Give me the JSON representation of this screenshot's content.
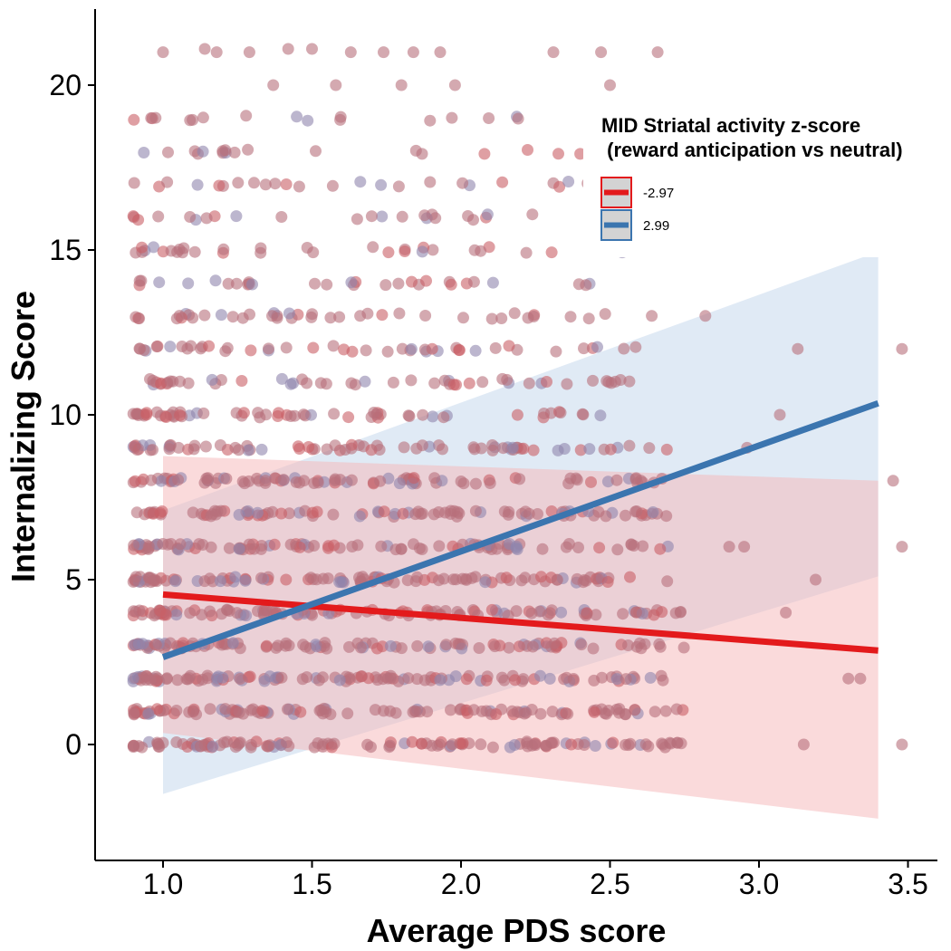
{
  "chart_data": {
    "type": "scatter",
    "xlabel": "Average PDS score",
    "ylabel": "Internalizing Score",
    "xlim": [
      0.78,
      3.58
    ],
    "ylim": [
      -3.4,
      22.3
    ],
    "x_ticks": [
      "1.0",
      "1.5",
      "2.0",
      "2.5",
      "3.0",
      "3.5"
    ],
    "y_ticks": [
      "0",
      "5",
      "10",
      "15",
      "20"
    ],
    "grid": false,
    "legend": {
      "title_line1": "MID Striatal activity z-score",
      "title_line2": " (reward anticipation vs neutral)",
      "placement": "top-right",
      "entries": [
        {
          "label": "-2.97",
          "color": "#e31a1c",
          "fill": "#d3d3d3"
        },
        {
          "label": "2.99",
          "color": "#3b75af",
          "fill": "#d3d3d3"
        }
      ]
    },
    "series": [
      {
        "name": "-2.97",
        "color": "#e31a1c",
        "band_color": "#f5b5b8",
        "fit": {
          "x": [
            1.0,
            3.4
          ],
          "y": [
            4.55,
            2.85
          ]
        },
        "ci_band": {
          "x": [
            1.0,
            3.4
          ],
          "lower": [
            0.35,
            -2.25
          ],
          "upper": [
            8.75,
            8.0
          ]
        }
      },
      {
        "name": "2.99",
        "color": "#3b75af",
        "band_color": "#c6d9ec",
        "fit": {
          "x": [
            1.0,
            3.4
          ],
          "y": [
            2.65,
            10.35
          ]
        },
        "ci_band": {
          "x": [
            1.0,
            3.4
          ],
          "lower": [
            -1.5,
            5.1
          ],
          "upper": [
            7.1,
            14.95
          ]
        }
      }
    ],
    "points": {
      "description_free_color": "#b7707c",
      "outlier_points": [
        {
          "x": 0.96,
          "y": 19.0
        },
        {
          "x": 1.0,
          "y": 21.0
        },
        {
          "x": 1.14,
          "y": 21.1
        },
        {
          "x": 1.18,
          "y": 21.0
        },
        {
          "x": 1.29,
          "y": 21.0
        },
        {
          "x": 1.42,
          "y": 21.1
        },
        {
          "x": 1.5,
          "y": 21.1
        },
        {
          "x": 1.63,
          "y": 21.0
        },
        {
          "x": 1.74,
          "y": 21.0
        },
        {
          "x": 1.84,
          "y": 21.0
        },
        {
          "x": 1.93,
          "y": 21.0
        },
        {
          "x": 2.31,
          "y": 21.0
        },
        {
          "x": 2.47,
          "y": 21.0
        },
        {
          "x": 2.66,
          "y": 21.0
        },
        {
          "x": 1.37,
          "y": 20.0
        },
        {
          "x": 1.58,
          "y": 20.0
        },
        {
          "x": 1.8,
          "y": 20.0
        },
        {
          "x": 1.98,
          "y": 20.0
        },
        {
          "x": 2.5,
          "y": 20.0
        },
        {
          "x": 1.2,
          "y": 18.0
        },
        {
          "x": 3.48,
          "y": 12.0
        },
        {
          "x": 3.48,
          "y": 6.0
        },
        {
          "x": 3.48,
          "y": 0.0
        },
        {
          "x": 3.45,
          "y": 8.0
        },
        {
          "x": 3.13,
          "y": 12.0
        },
        {
          "x": 2.64,
          "y": 13.0
        },
        {
          "x": 2.82,
          "y": 13.0
        },
        {
          "x": 2.96,
          "y": 9.0
        },
        {
          "x": 3.07,
          "y": 10.0
        },
        {
          "x": 3.19,
          "y": 5.0
        },
        {
          "x": 3.34,
          "y": 2.0
        },
        {
          "x": 3.3,
          "y": 2.0
        },
        {
          "x": 3.09,
          "y": 4.0
        },
        {
          "x": 3.15,
          "y": 0.0
        },
        {
          "x": 2.95,
          "y": 6.0
        },
        {
          "x": 2.9,
          "y": 6.0
        }
      ]
    }
  }
}
